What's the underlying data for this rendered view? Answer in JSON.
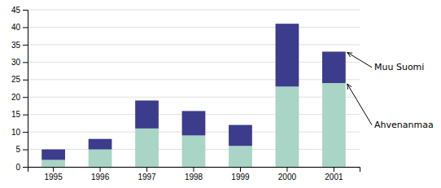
{
  "chart_data": {
    "type": "bar",
    "stacked": true,
    "grid": true,
    "categories": [
      "1995",
      "1996",
      "1997",
      "1998",
      "1999",
      "2000",
      "2001"
    ],
    "series": [
      {
        "name": "Ahvenanmaa",
        "color": "#a8d5c5",
        "values": [
          2,
          5,
          11,
          9,
          6,
          23,
          24
        ]
      },
      {
        "name": "Muu Suomi",
        "color": "#3c3c8c",
        "values": [
          3,
          3,
          8,
          7,
          6,
          18,
          9
        ]
      }
    ],
    "ylim": [
      0,
      45
    ],
    "yticks": [
      0,
      5,
      10,
      15,
      20,
      25,
      30,
      35,
      40,
      45
    ]
  }
}
